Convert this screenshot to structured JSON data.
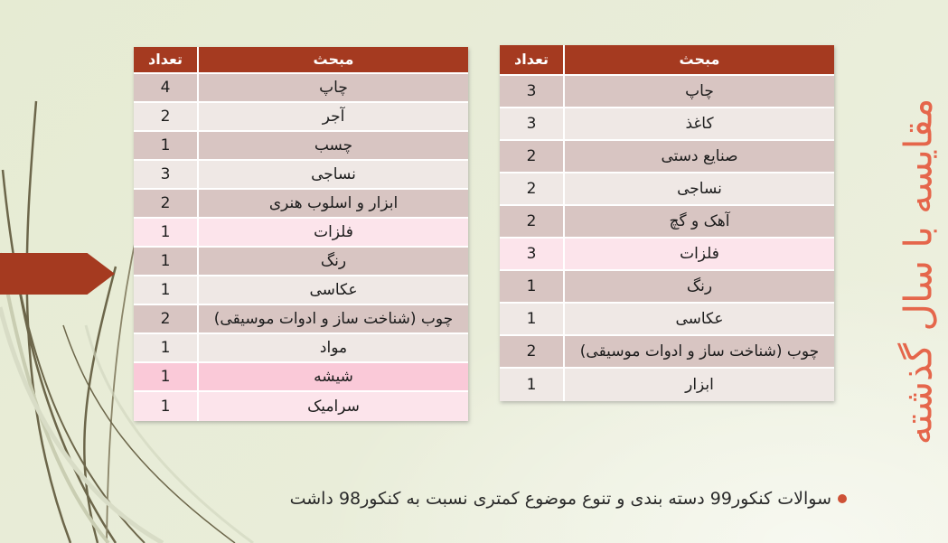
{
  "slide": {
    "title": "مقایسه با سال گذشته",
    "bullet_text": "سوالات کنکور99 دسته بندی و تنوع موضوع کمتری نسبت به کنکور98 داشت"
  },
  "tables": {
    "headers": {
      "count": "تعداد",
      "topic": "مبحث"
    },
    "left": {
      "rows": [
        {
          "topic": "چاپ",
          "count": "4",
          "shade": "dark"
        },
        {
          "topic": "آجر",
          "count": "2",
          "shade": "light"
        },
        {
          "topic": "چسب",
          "count": "1",
          "shade": "dark"
        },
        {
          "topic": "نساجی",
          "count": "3",
          "shade": "light"
        },
        {
          "topic": "ابزار و اسلوب هنری",
          "count": "2",
          "shade": "dark"
        },
        {
          "topic": "فلزات",
          "count": "1",
          "shade": "pink"
        },
        {
          "topic": "رنگ",
          "count": "1",
          "shade": "dark"
        },
        {
          "topic": "عکاسی",
          "count": "1",
          "shade": "light"
        },
        {
          "topic": "چوب (شناخت ساز و ادوات موسیقی)",
          "count": "2",
          "shade": "dark"
        },
        {
          "topic": "مواد",
          "count": "1",
          "shade": "light"
        },
        {
          "topic": "شیشه",
          "count": "1",
          "shade": "pink-bright"
        },
        {
          "topic": "سرامیک",
          "count": "1",
          "shade": "pink"
        }
      ]
    },
    "right": {
      "rows": [
        {
          "topic": "چاپ",
          "count": "3",
          "shade": "dark"
        },
        {
          "topic": "کاغذ",
          "count": "3",
          "shade": "light"
        },
        {
          "topic": "صنایع دستی",
          "count": "2",
          "shade": "dark"
        },
        {
          "topic": "نساجی",
          "count": "2",
          "shade": "light"
        },
        {
          "topic": "آهک و گچ",
          "count": "2",
          "shade": "dark"
        },
        {
          "topic": "فلزات",
          "count": "3",
          "shade": "pink"
        },
        {
          "topic": "رنگ",
          "count": "1",
          "shade": "dark"
        },
        {
          "topic": "عکاسی",
          "count": "1",
          "shade": "light"
        },
        {
          "topic": "چوب (شناخت ساز و ادوات موسیقی)",
          "count": "2",
          "shade": "dark"
        },
        {
          "topic": "ابزار",
          "count": "1",
          "shade": "light"
        }
      ]
    }
  },
  "colors": {
    "header_red": "#a53a20",
    "arrow_red": "#a53a20",
    "title_coral": "#e5664b",
    "row_dark": "#d8c5c2",
    "row_light": "#efe8e5",
    "row_pink": "#fce4eb",
    "row_pink_bright": "#fac9d8",
    "background": "#e9edd9",
    "bullet_ring": "#ce5136",
    "grass_dark": "#6c664a"
  },
  "icons": {
    "bullet": "donut-circle-icon",
    "arrow": "right-arrow-shape"
  }
}
